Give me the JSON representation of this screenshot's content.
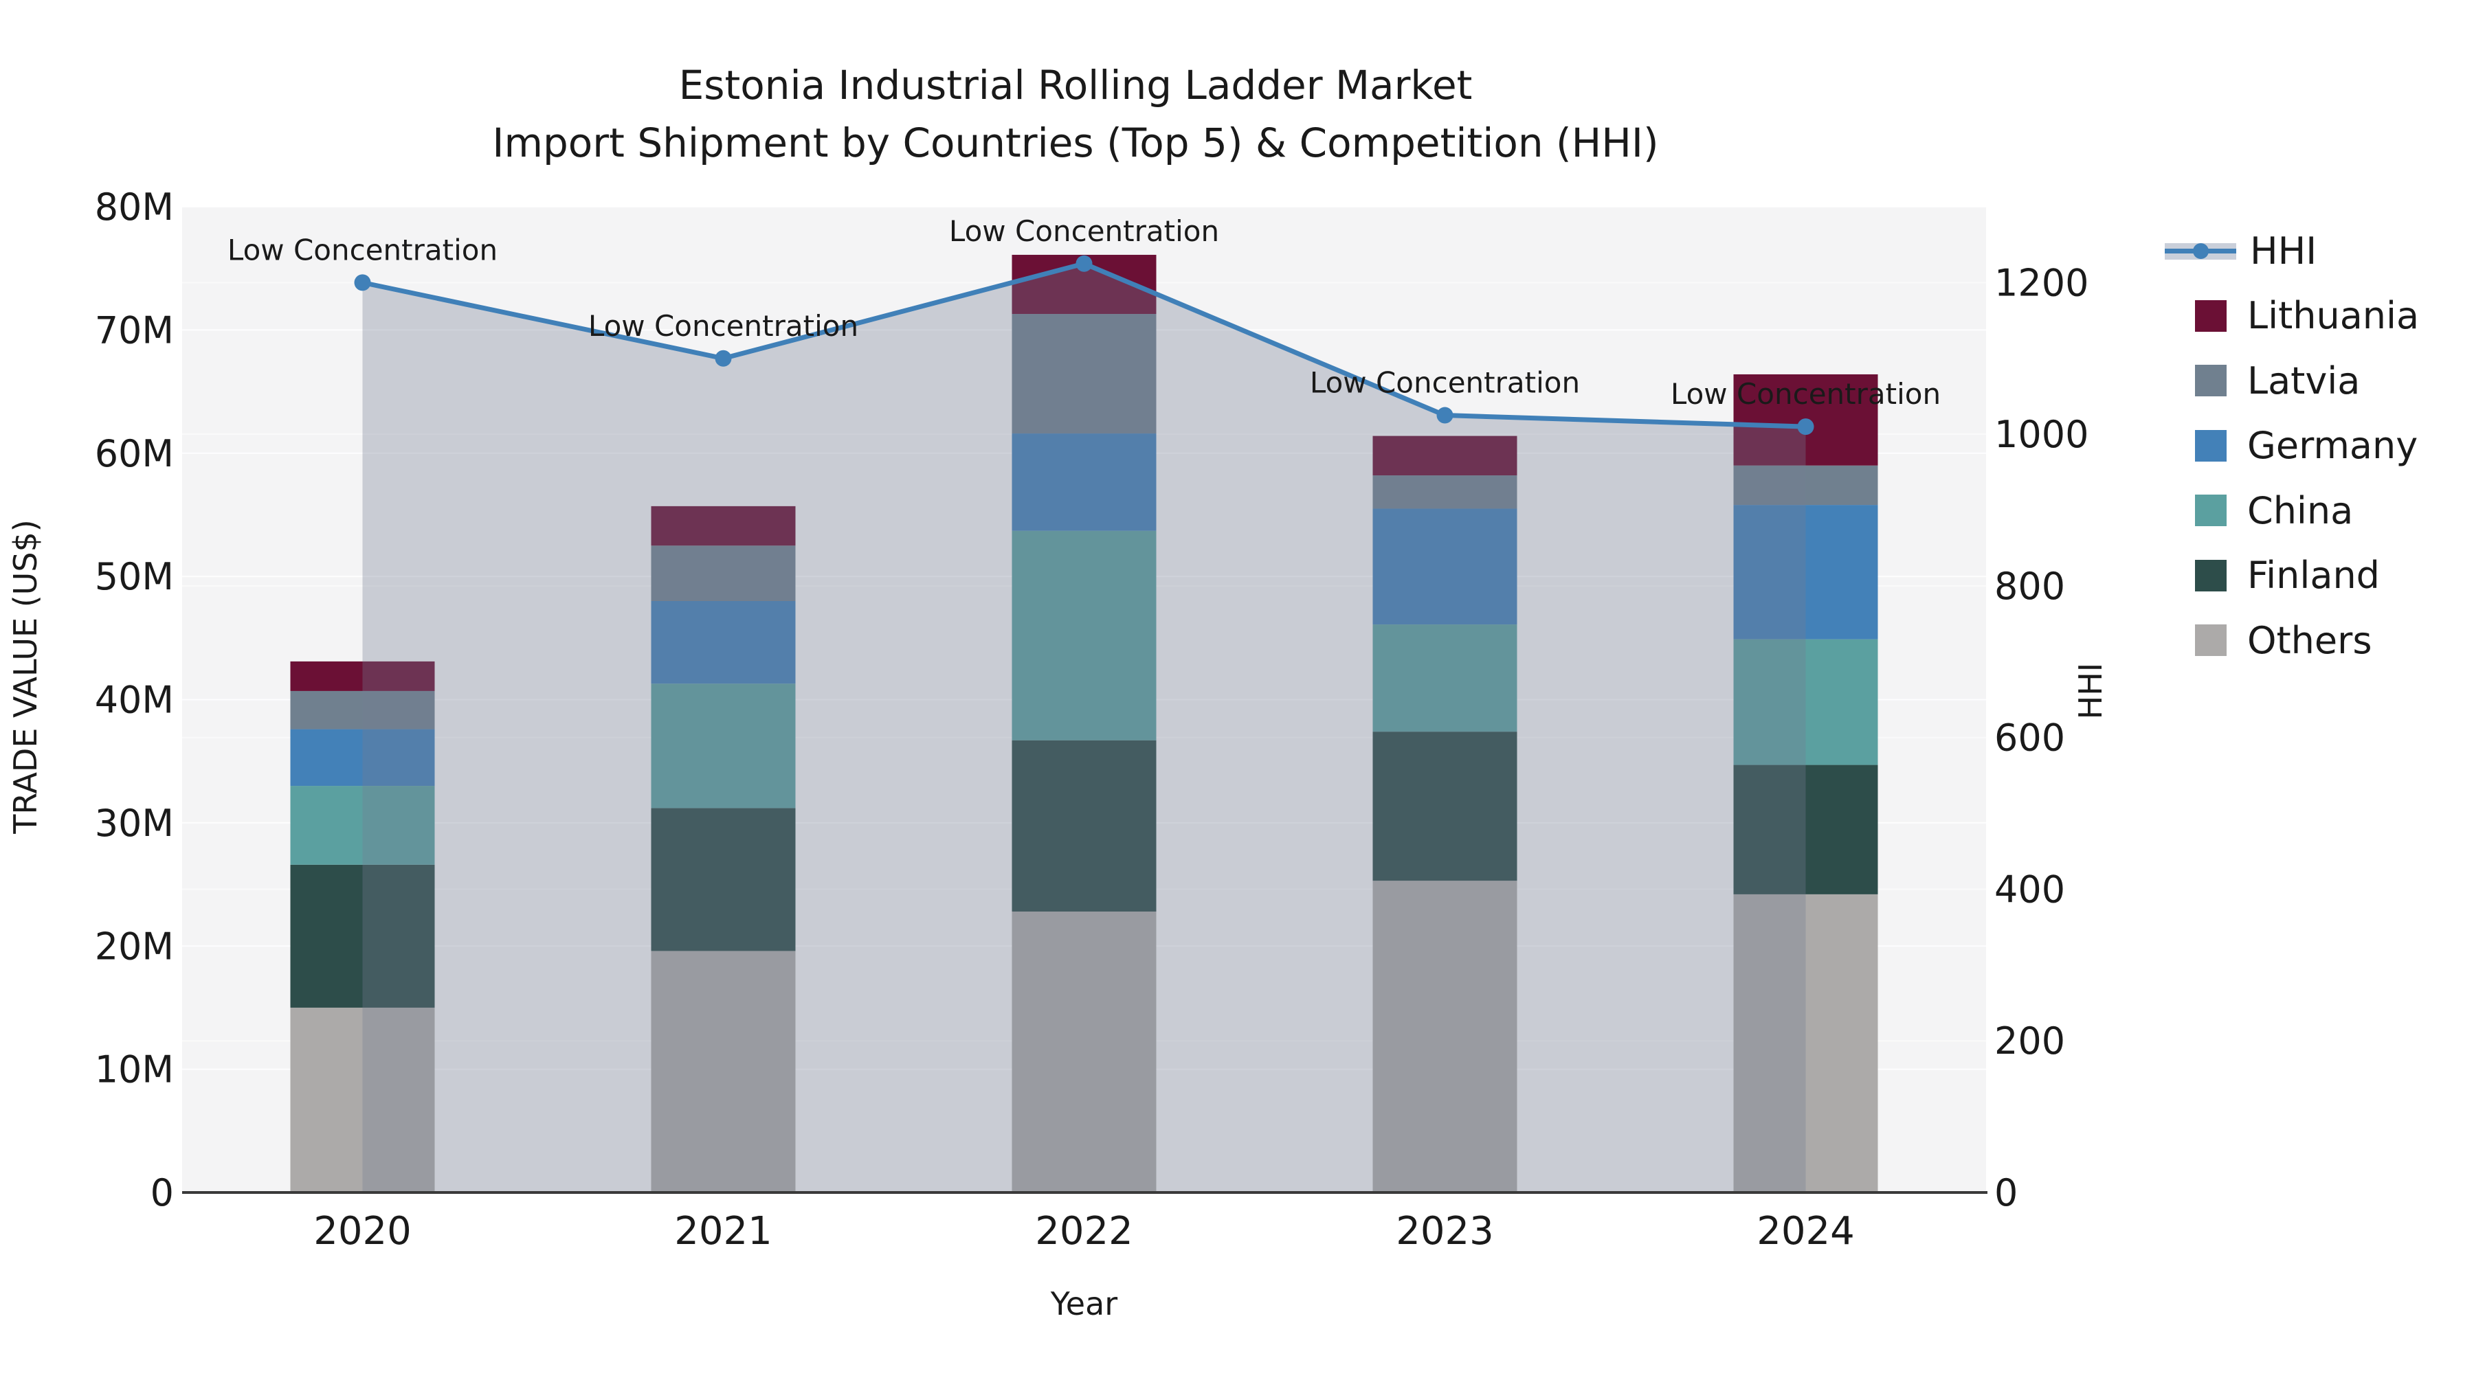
{
  "title": {
    "line1": "Estonia Industrial Rolling Ladder Market",
    "line2": "Import Shipment by Countries (Top 5) & Competition (HHI)"
  },
  "colors": {
    "plot_bg": "#f4f4f5",
    "grid": "#ffffff",
    "spine": "#3a3a3a",
    "hhi_line": "#4080b8",
    "hhi_fill_overlay": "rgba(115,125,145,0.33)",
    "text": "#1a1a1a"
  },
  "legend": {
    "items": [
      {
        "label": "HHI",
        "type": "line",
        "color": "#4080b8",
        "band": "#c9cfda"
      },
      {
        "label": "Lithuania",
        "type": "patch",
        "color": "#6b1035"
      },
      {
        "label": "Latvia",
        "type": "patch",
        "color": "#70808f"
      },
      {
        "label": "Germany",
        "type": "patch",
        "color": "#4381b8"
      },
      {
        "label": "China",
        "type": "patch",
        "color": "#5ba0a0"
      },
      {
        "label": "Finland",
        "type": "patch",
        "color": "#2d4d4a"
      },
      {
        "label": "Others",
        "type": "patch",
        "color": "#acaaa9"
      }
    ]
  },
  "chart_data": {
    "type": "combo",
    "subtype": [
      "stacked-bar",
      "line-area"
    ],
    "categories": [
      "2020",
      "2021",
      "2022",
      "2023",
      "2024"
    ],
    "x": {
      "label": "Year"
    },
    "y_left": {
      "label": "TRADE VALUE (US$)",
      "max": 80,
      "unit": "M",
      "tick_values": [
        0,
        10,
        20,
        30,
        40,
        50,
        60,
        70,
        80
      ],
      "tick_labels": [
        "0",
        "10M",
        "20M",
        "30M",
        "40M",
        "50M",
        "60M",
        "70M",
        "80M"
      ]
    },
    "y_right": {
      "label": "HHI",
      "max": 1300,
      "tick_values": [
        0,
        200,
        400,
        600,
        800,
        1000,
        1200
      ],
      "tick_labels": [
        "0",
        "200",
        "400",
        "600",
        "800",
        "1000",
        "1200"
      ]
    },
    "bar_series": [
      {
        "name": "Others",
        "color": "#acaaa9",
        "values": [
          15.0,
          19.6,
          22.8,
          25.3,
          24.2
        ]
      },
      {
        "name": "Finland",
        "color": "#2d4d4a",
        "values": [
          11.6,
          11.6,
          13.9,
          12.1,
          10.5
        ]
      },
      {
        "name": "China",
        "color": "#5ba0a0",
        "values": [
          6.4,
          10.1,
          17.0,
          8.7,
          10.2
        ]
      },
      {
        "name": "Germany",
        "color": "#4381b8",
        "values": [
          4.6,
          6.7,
          7.9,
          9.4,
          10.9
        ]
      },
      {
        "name": "Latvia",
        "color": "#70808f",
        "values": [
          3.1,
          4.5,
          9.7,
          2.7,
          3.2
        ]
      },
      {
        "name": "Lithuania",
        "color": "#6b1035",
        "values": [
          2.4,
          3.2,
          4.8,
          3.2,
          7.4
        ]
      }
    ],
    "bar_totals": [
      43.1,
      55.7,
      76.1,
      61.4,
      66.4
    ],
    "line_series": {
      "name": "HHI",
      "axis": "right",
      "color": "#4080b8",
      "values": [
        1200,
        1100,
        1225,
        1025,
        1010
      ],
      "annotations": [
        "Low Concentration",
        "Low Concentration",
        "Low Concentration",
        "Low Concentration",
        "Low Concentration"
      ]
    }
  }
}
